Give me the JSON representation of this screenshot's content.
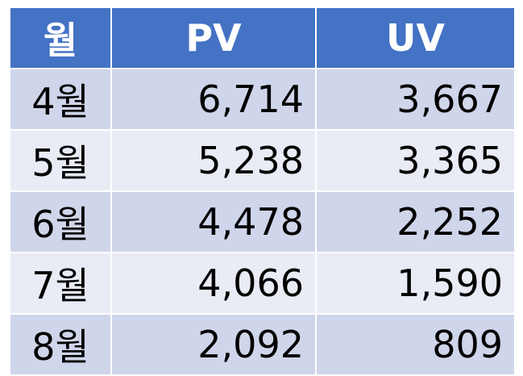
{
  "chart_data": {
    "type": "table",
    "columns": [
      "월",
      "PV",
      "UV"
    ],
    "rows": [
      {
        "month": "4월",
        "pv": "6,714",
        "uv": "3,667"
      },
      {
        "month": "5월",
        "pv": "5,238",
        "uv": "3,365"
      },
      {
        "month": "6월",
        "pv": "4,478",
        "uv": "2,252"
      },
      {
        "month": "7월",
        "pv": "4,066",
        "uv": "1,590"
      },
      {
        "month": "8월",
        "pv": "2,092",
        "uv": "809"
      }
    ]
  },
  "colors": {
    "header_bg": "#4472c4",
    "header_text": "#ffffff",
    "row_odd": "#cfd5ea",
    "row_even": "#e9ebf5"
  }
}
